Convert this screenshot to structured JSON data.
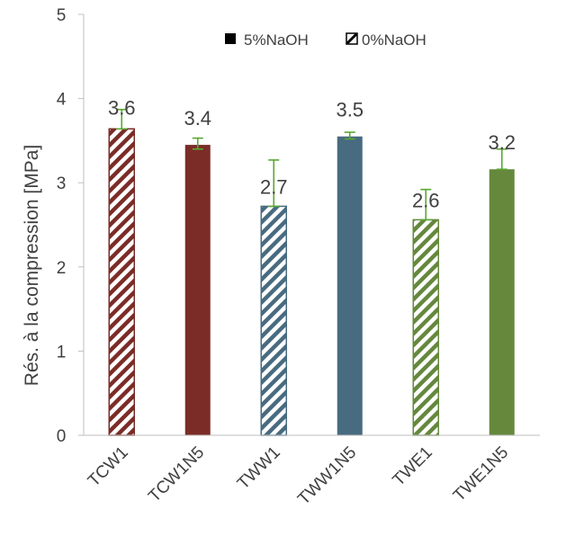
{
  "chart_data": {
    "type": "bar",
    "title": "",
    "xlabel": "",
    "ylabel": "Rés. à la compression [MPa]",
    "ylim": [
      0,
      5
    ],
    "yticks": [
      "0",
      "1",
      "2",
      "3",
      "4",
      "5"
    ],
    "grid": false,
    "legend_position": "top-right",
    "legend": [
      {
        "label": "5%NaOH",
        "style": "solid"
      },
      {
        "label": "0%NaOH",
        "style": "hatched"
      }
    ],
    "categories": [
      "TCW1",
      "TCW1N5",
      "TWW1",
      "TWW1N5",
      "TWE1",
      "TWE1N5"
    ],
    "values": [
      3.64,
      3.45,
      2.72,
      3.55,
      2.56,
      3.16
    ],
    "error_high": [
      3.87,
      3.53,
      3.27,
      3.6,
      2.92,
      3.4
    ],
    "error_low": [
      3.64,
      3.4,
      2.72,
      3.52,
      2.56,
      3.16
    ],
    "data_labels": [
      "3.6",
      "3.4",
      "2.7",
      "3.5",
      "2.6",
      "3.2"
    ],
    "colors": [
      "#7b2c27",
      "#7b2c27",
      "#486b80",
      "#486b80",
      "#65883d",
      "#65883d"
    ],
    "hatched": [
      true,
      false,
      true,
      false,
      true,
      false
    ],
    "error_bar_color": "#5aa832"
  }
}
